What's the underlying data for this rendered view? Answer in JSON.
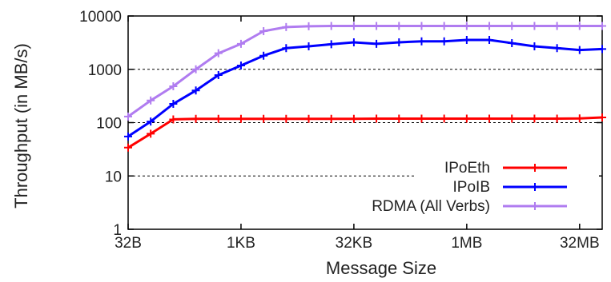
{
  "chart_data": {
    "type": "line",
    "xlabel": "Message Size",
    "ylabel": "Throughput (in MB/s)",
    "x_scale": "log2",
    "y_scale": "log10",
    "ylim": [
      1,
      10000
    ],
    "y_ticks": [
      {
        "value": 1,
        "label": "1"
      },
      {
        "value": 10,
        "label": "10"
      },
      {
        "value": 100,
        "label": "100"
      },
      {
        "value": 1000,
        "label": "1000"
      },
      {
        "value": 10000,
        "label": "10000"
      }
    ],
    "x_ticks": [
      {
        "value": 32,
        "label": "32B"
      },
      {
        "value": 1024,
        "label": "1KB"
      },
      {
        "value": 32768,
        "label": "32KB"
      },
      {
        "value": 1048576,
        "label": "1MB"
      },
      {
        "value": 33554432,
        "label": "32MB"
      }
    ],
    "x": [
      32,
      64,
      128,
      256,
      512,
      1024,
      2048,
      4096,
      8192,
      16384,
      32768,
      65536,
      131072,
      262144,
      524288,
      1048576,
      2097152,
      4194304,
      8388608,
      16777216,
      33554432,
      67108864
    ],
    "grid": "horizontal dashed",
    "legend_position": "bottom-right",
    "series": [
      {
        "name": "IPoEth",
        "color": "#ff0000",
        "values": [
          34,
          62,
          115,
          118,
          118,
          118,
          118,
          118,
          118,
          118,
          118,
          119,
          119,
          119,
          119,
          119,
          119,
          119,
          119,
          119,
          120,
          125
        ]
      },
      {
        "name": "IPoIB",
        "color": "#0000ff",
        "values": [
          55,
          105,
          225,
          400,
          780,
          1180,
          1800,
          2500,
          2700,
          2950,
          3200,
          3000,
          3200,
          3350,
          3350,
          3550,
          3550,
          3100,
          2700,
          2500,
          2300,
          2400
        ]
      },
      {
        "name": "RDMA (All Verbs)",
        "color": "#b07cf0",
        "values": [
          130,
          260,
          480,
          1000,
          2000,
          3000,
          5200,
          6200,
          6400,
          6500,
          6500,
          6500,
          6500,
          6500,
          6500,
          6500,
          6500,
          6500,
          6500,
          6500,
          6500,
          6500
        ]
      }
    ]
  }
}
